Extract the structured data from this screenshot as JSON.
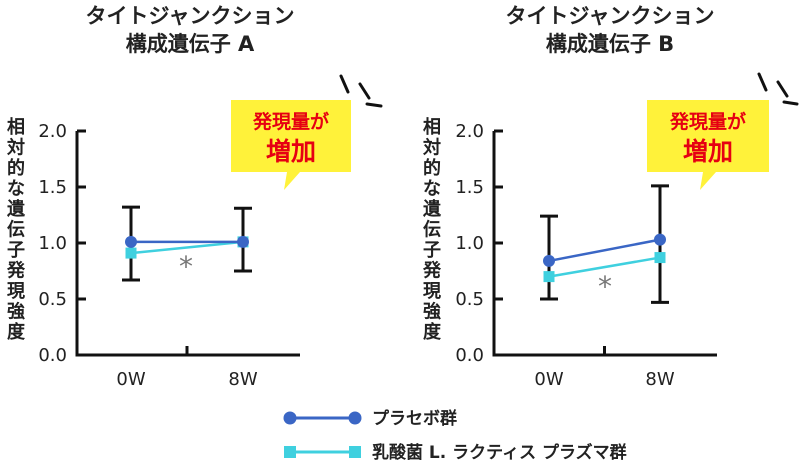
{
  "colors": {
    "placebo": "#3a66c5",
    "treatment": "#3fd0df",
    "axis": "#111111",
    "errorbar": "#111111",
    "callout_bg": "#fff23a",
    "callout_text": "#e60012",
    "star": "#777777"
  },
  "callout": {
    "line1": "発現量が",
    "line2": "増加"
  },
  "legend": [
    {
      "name": "プラセボ群",
      "series": "placebo",
      "marker": "circle"
    },
    {
      "name": "乳酸菌 L. ラクティス プラズマ群",
      "series": "treatment",
      "marker": "square"
    }
  ],
  "chart_data": [
    {
      "type": "line",
      "title": [
        "タイトジャンクション",
        "構成遺伝子 A"
      ],
      "ylabel": "相対的な遺伝子発現強度",
      "categories": [
        "0W",
        "8W"
      ],
      "ylim": [
        0,
        2
      ],
      "yticks": [
        "0.0",
        "0.5",
        "1.0",
        "1.5",
        "2.0"
      ],
      "grid": false,
      "significance": "*",
      "series": [
        {
          "name": "プラセボ群",
          "key": "placebo",
          "values": [
            1.01,
            1.01
          ],
          "error_low": [
            0.67,
            0.75
          ],
          "error_high": [
            1.32,
            1.31
          ]
        },
        {
          "name": "乳酸菌 L. ラクティス プラズマ群",
          "key": "treatment",
          "values": [
            0.91,
            1.01
          ]
        }
      ]
    },
    {
      "type": "line",
      "title": [
        "タイトジャンクション",
        "構成遺伝子 B"
      ],
      "ylabel": "相対的な遺伝子発現強度",
      "categories": [
        "0W",
        "8W"
      ],
      "ylim": [
        0,
        2
      ],
      "yticks": [
        "0.0",
        "0.5",
        "1.0",
        "1.5",
        "2.0"
      ],
      "grid": false,
      "significance": "*",
      "series": [
        {
          "name": "プラセボ群",
          "key": "placebo",
          "values": [
            0.84,
            1.03
          ],
          "error_low": [
            0.5,
            0.47
          ],
          "error_high": [
            1.24,
            1.51
          ]
        },
        {
          "name": "乳酸菌 L. ラクティス プラズマ群",
          "key": "treatment",
          "values": [
            0.7,
            0.87
          ]
        }
      ]
    }
  ]
}
